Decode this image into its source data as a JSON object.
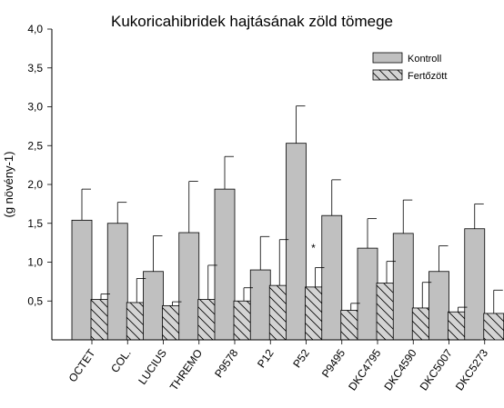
{
  "chart_data": {
    "type": "bar",
    "title": "Kukoricahibridek hajtásának zöld tömege",
    "ylabel": "(g növény-1)",
    "xlabel": "",
    "ylim": [
      0,
      4.0
    ],
    "yticks": [
      "4,0",
      "3,5",
      "3,0",
      "2,5",
      "2,0",
      "1,5",
      "1,0",
      "0,5"
    ],
    "ytick_values": [
      4.0,
      3.5,
      3.0,
      2.5,
      2.0,
      1.5,
      1.0,
      0.5
    ],
    "categories": [
      "OCTET",
      "COL.",
      "LUCIUS",
      "THREMO",
      "P9578",
      "P12",
      "P52",
      "P9495",
      "DKC4795",
      "DKC4590",
      "DKC5007",
      "DKC5273"
    ],
    "series": [
      {
        "name": "Kontroll",
        "fill": "#c0c0c0",
        "pattern": "solid",
        "values": [
          1.54,
          1.5,
          0.88,
          1.38,
          1.94,
          0.9,
          2.53,
          1.6,
          1.18,
          1.37,
          0.88,
          1.43
        ],
        "error": [
          0.4,
          0.27,
          0.46,
          0.66,
          0.42,
          0.43,
          0.48,
          0.46,
          0.38,
          0.43,
          0.33,
          0.32
        ]
      },
      {
        "name": "Fertőzött",
        "fill": "#d4d4d4",
        "pattern": "hatched",
        "values": [
          0.52,
          0.48,
          0.44,
          0.52,
          0.5,
          0.7,
          0.68,
          0.38,
          0.73,
          0.41,
          0.36,
          0.34
        ],
        "error": [
          0.07,
          0.31,
          0.05,
          0.44,
          0.17,
          0.59,
          0.25,
          0.09,
          0.28,
          0.33,
          0.06,
          0.3
        ]
      }
    ],
    "annotations": [
      {
        "text": "*",
        "category": "P52",
        "series": "Fertőzött",
        "value": 1.18
      }
    ],
    "legend": {
      "position": "top-right"
    },
    "grid": false
  }
}
